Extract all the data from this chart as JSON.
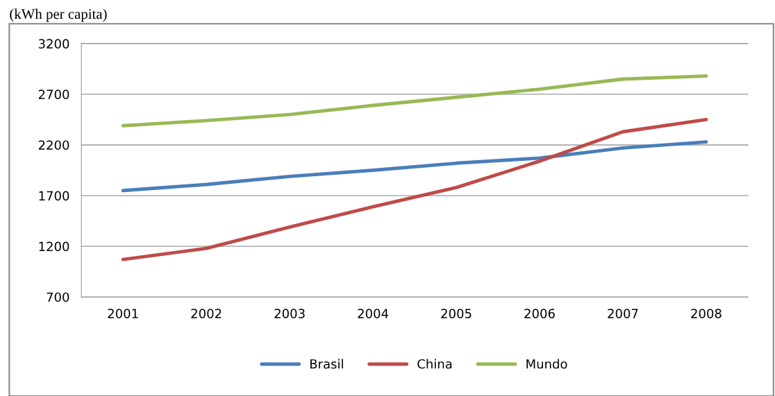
{
  "chart_data": {
    "type": "line",
    "title": "(kWh per capita)",
    "categories": [
      "2001",
      "2002",
      "2003",
      "2004",
      "2005",
      "2006",
      "2007",
      "2008"
    ],
    "series": [
      {
        "name": "Brasil",
        "color": "#4a7ebb",
        "values": [
          1750,
          1810,
          1890,
          1950,
          2020,
          2070,
          2170,
          2230
        ]
      },
      {
        "name": "China",
        "color": "#be4b48",
        "values": [
          1070,
          1180,
          1390,
          1590,
          1780,
          2040,
          2330,
          2450
        ]
      },
      {
        "name": "Mundo",
        "color": "#98b954",
        "values": [
          2390,
          2440,
          2500,
          2590,
          2670,
          2750,
          2850,
          2880
        ]
      }
    ],
    "ylim": [
      700,
      3200
    ],
    "yticks": [
      700,
      1200,
      1700,
      2200,
      2700,
      3200
    ],
    "grid": "y",
    "legend": "bottom",
    "marker": "none",
    "line_style": "solid"
  }
}
